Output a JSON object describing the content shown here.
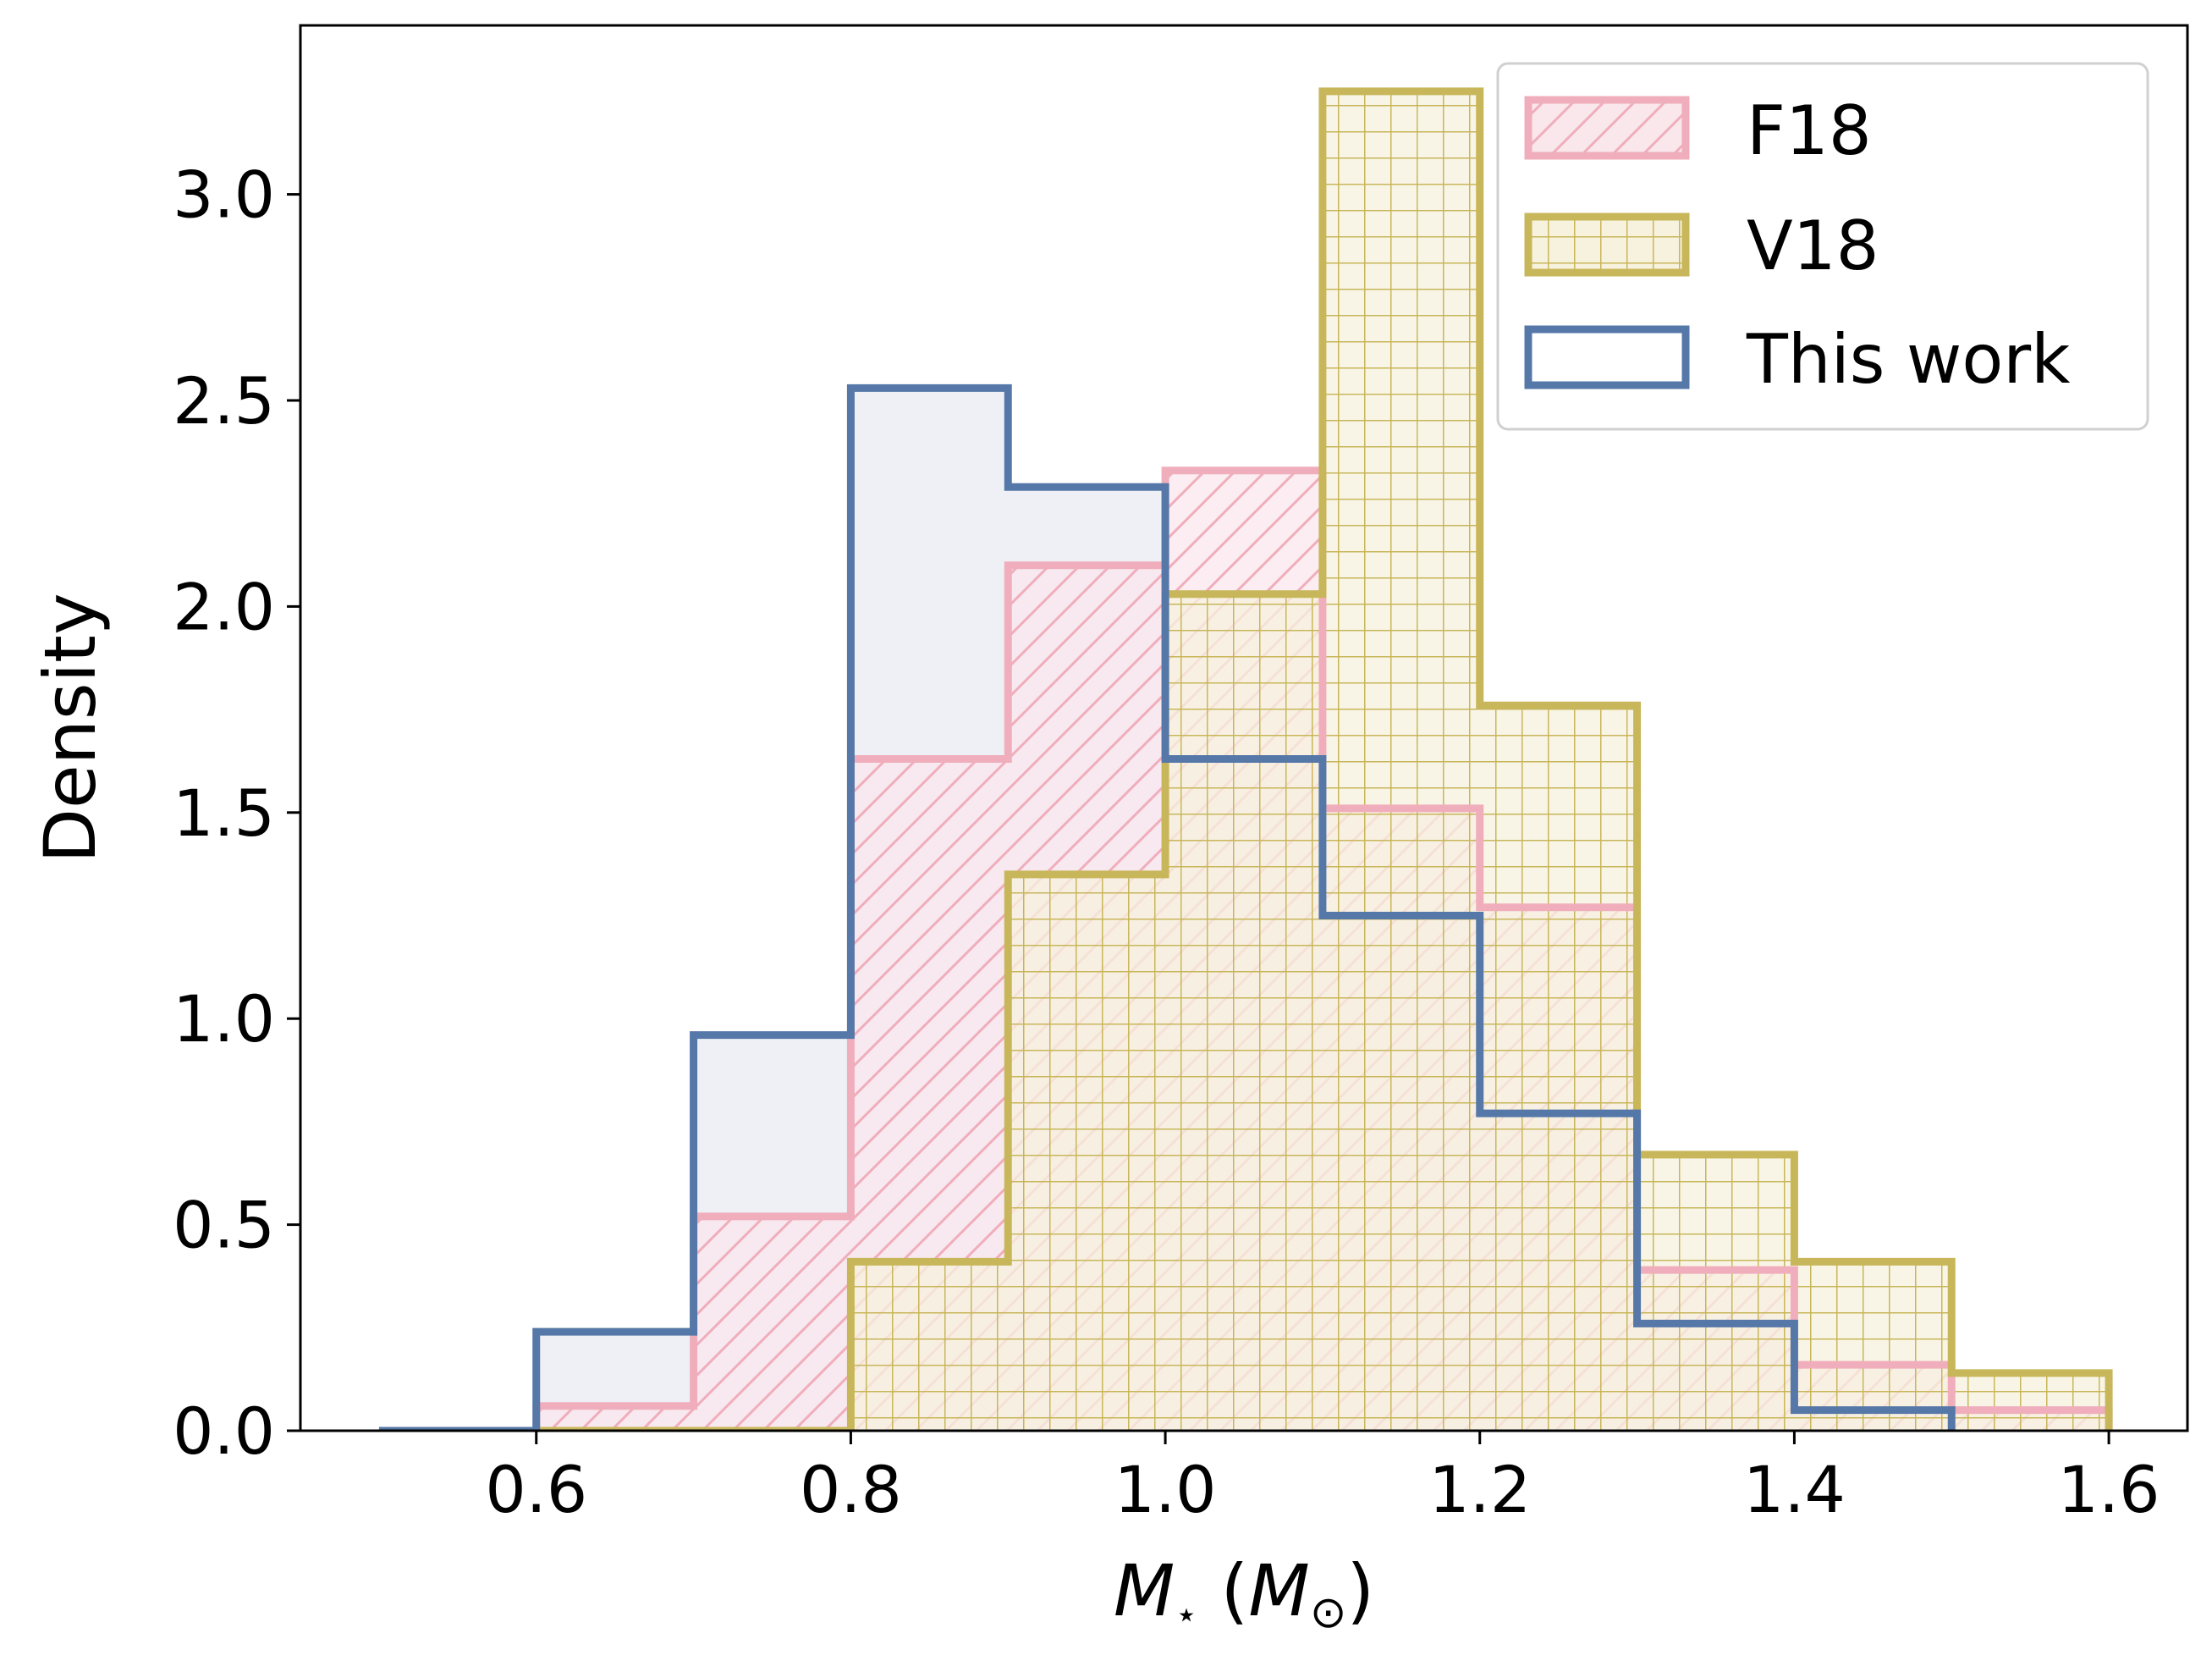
{
  "chart_data": {
    "type": "histogram",
    "title": "",
    "xlabel_main": "M",
    "xlabel_sub": "⋆",
    "xlabel_paren_open": " (",
    "xlabel_unit": "M",
    "xlabel_unit_sub": "⊙",
    "xlabel_paren_close": ")",
    "ylabel": "Density",
    "xlim": [
      0.45,
      1.65
    ],
    "ylim": [
      0,
      3.41
    ],
    "xticks": [
      0.6,
      0.8,
      1.0,
      1.2,
      1.4,
      1.6
    ],
    "xtick_labels": [
      "0.6",
      "0.8",
      "1.0",
      "1.2",
      "1.4",
      "1.6"
    ],
    "yticks": [
      0.0,
      0.5,
      1.0,
      1.5,
      2.0,
      2.5,
      3.0
    ],
    "ytick_labels": [
      "0.0",
      "0.5",
      "1.0",
      "1.5",
      "2.0",
      "2.5",
      "3.0"
    ],
    "legend_position": "top-right",
    "series": [
      {
        "name": "F18",
        "color": "#f0aebc",
        "fill": "#f9e7ec",
        "hatch": "diagonal",
        "bin_edges": [
          0.6,
          0.7,
          0.8,
          0.9,
          1.0,
          1.1,
          1.2,
          1.3,
          1.4,
          1.5,
          1.6
        ],
        "values": [
          0.06,
          0.52,
          1.63,
          2.1,
          2.33,
          1.51,
          1.27,
          0.39,
          0.16,
          0.05
        ]
      },
      {
        "name": "V18",
        "color": "#c8b65a",
        "fill": "#f7f2dd",
        "hatch": "grid",
        "bin_edges": [
          0.6,
          0.7,
          0.8,
          0.9,
          1.0,
          1.1,
          1.2,
          1.3,
          1.4,
          1.5,
          1.6
        ],
        "values": [
          0.0,
          0.0,
          0.41,
          1.35,
          2.03,
          3.25,
          1.76,
          0.67,
          0.41,
          0.14
        ]
      },
      {
        "name": "This work",
        "color": "#5578a8",
        "fill": "#e8ebf2",
        "hatch": "none",
        "bin_edges": [
          0.5,
          0.6,
          0.7,
          0.8,
          0.9,
          1.0,
          1.1,
          1.2,
          1.3,
          1.4,
          1.5
        ],
        "values": [
          0.0,
          0.24,
          0.96,
          2.53,
          2.29,
          1.63,
          1.25,
          0.77,
          0.26,
          0.05
        ]
      }
    ]
  }
}
